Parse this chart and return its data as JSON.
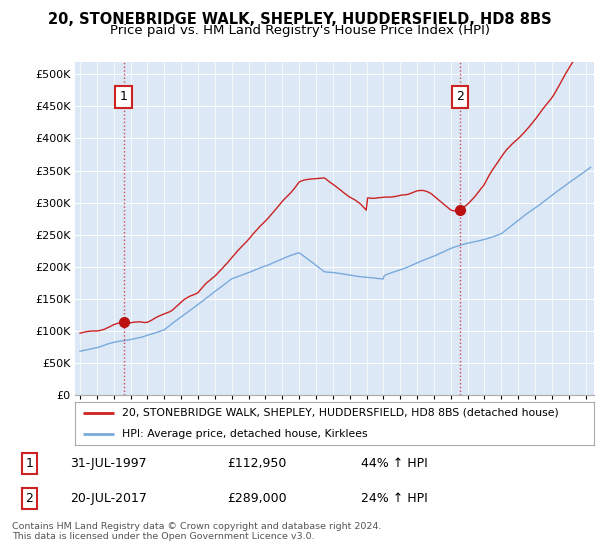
{
  "title": "20, STONEBRIDGE WALK, SHEPLEY, HUDDERSFIELD, HD8 8BS",
  "subtitle": "Price paid vs. HM Land Registry's House Price Index (HPI)",
  "ylabel_ticks": [
    "£0",
    "£50K",
    "£100K",
    "£150K",
    "£200K",
    "£250K",
    "£300K",
    "£350K",
    "£400K",
    "£450K",
    "£500K"
  ],
  "ytick_values": [
    0,
    50000,
    100000,
    150000,
    200000,
    250000,
    300000,
    350000,
    400000,
    450000,
    500000
  ],
  "ylim": [
    0,
    520000
  ],
  "xlim_start": 1994.7,
  "xlim_end": 2025.5,
  "sale1_x": 1997.58,
  "sale1_y": 112950,
  "sale2_x": 2017.55,
  "sale2_y": 289000,
  "sale1_label": "1",
  "sale2_label": "2",
  "red_line_color": "#cc2222",
  "blue_line_color": "#7aaadd",
  "marker_color": "#bb1111",
  "vline_color": "#cc2222",
  "background_color": "#ffffff",
  "plot_bg_color": "#dce8f5",
  "grid_color": "#ffffff",
  "legend_text1": "20, STONEBRIDGE WALK, SHEPLEY, HUDDERSFIELD, HD8 8BS (detached house)",
  "legend_text2": "HPI: Average price, detached house, Kirklees",
  "annotation1_date": "31-JUL-1997",
  "annotation1_price": "£112,950",
  "annotation1_hpi": "44% ↑ HPI",
  "annotation2_date": "20-JUL-2017",
  "annotation2_price": "£289,000",
  "annotation2_hpi": "24% ↑ HPI",
  "footnote": "Contains HM Land Registry data © Crown copyright and database right 2024.\nThis data is licensed under the Open Government Licence v3.0.",
  "title_fontsize": 10.5,
  "subtitle_fontsize": 9.5
}
